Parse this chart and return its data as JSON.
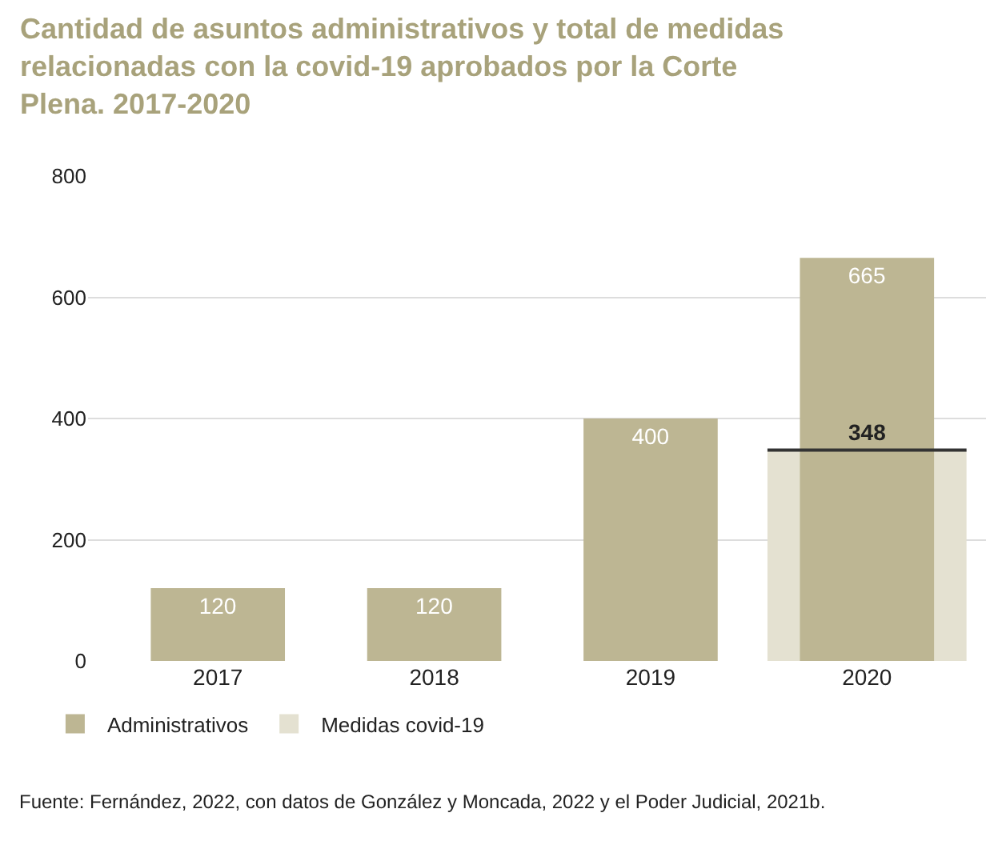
{
  "chart_data": {
    "type": "bar",
    "title": "Cantidad de asuntos administrativos y total de medidas relacionadas con la covid-19 aprobados por la Corte Plena. 2017-2020",
    "categories": [
      "2017",
      "2018",
      "2019",
      "2020"
    ],
    "series": [
      {
        "name": "Medidas covid-19",
        "color": "#e4e1d1",
        "values": [
          null,
          null,
          null,
          348
        ]
      },
      {
        "name": "Administrativos",
        "color": "#bdb693",
        "values": [
          120,
          120,
          400,
          665
        ]
      }
    ],
    "ylim": [
      0,
      800
    ],
    "yticks": [
      0,
      200,
      400,
      600,
      800
    ],
    "grid": "y",
    "legend": "bottom left",
    "data_labels": true,
    "annotations": [
      "Fuente: Fernández, 2022, con datos de González y Moncada, 2022 y el Poder Judicial, 2021b."
    ]
  }
}
